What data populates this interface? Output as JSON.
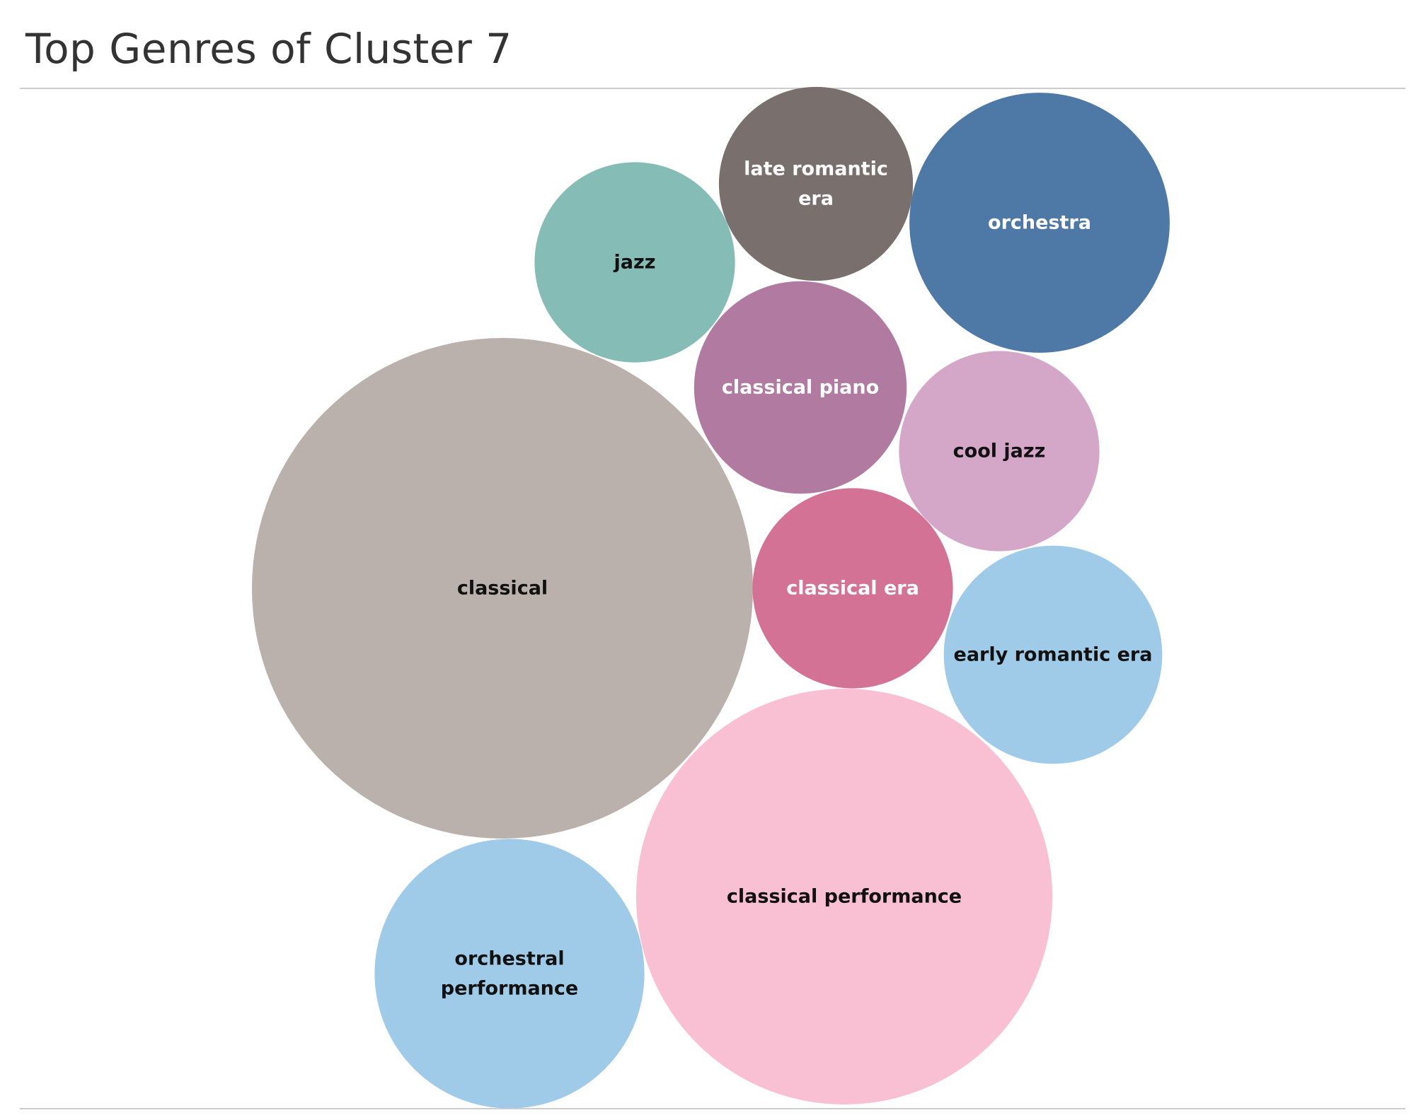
{
  "chart_data": {
    "type": "bubble",
    "title": "Top Genres of Cluster 7",
    "encoding": "bubble area proportional to genre count",
    "bubbles": [
      {
        "label": [
          "classical"
        ],
        "value": 100,
        "color": "#bab0ac",
        "label_color": "#111111"
      },
      {
        "label": [
          "classical performance"
        ],
        "value": 69,
        "color": "#f9bfd3",
        "label_color": "#111111"
      },
      {
        "label": [
          "orchestral",
          "performance"
        ],
        "value": 29,
        "color": "#a0cbe8",
        "label_color": "#111111"
      },
      {
        "label": [
          "orchestra"
        ],
        "value": 27,
        "color": "#4e79a7",
        "label_color": "#ffffff"
      },
      {
        "label": [
          "early romantic era"
        ],
        "value": 19,
        "color": "#a0cbe8",
        "label_color": "#111111"
      },
      {
        "label": [
          "classical piano"
        ],
        "value": 18,
        "color": "#b07aa1",
        "label_color": "#ffffff"
      },
      {
        "label": [
          "cool jazz"
        ],
        "value": 16,
        "color": "#d4a6c8",
        "label_color": "#111111"
      },
      {
        "label": [
          "jazz"
        ],
        "value": 16,
        "color": "#86bcb6",
        "label_color": "#111111"
      },
      {
        "label": [
          "classical era"
        ],
        "value": 16,
        "color": "#d37295",
        "label_color": "#ffffff"
      },
      {
        "label": [
          "late romantic",
          "era"
        ],
        "value": 15,
        "color": "#79706e",
        "label_color": "#ffffff"
      }
    ]
  }
}
